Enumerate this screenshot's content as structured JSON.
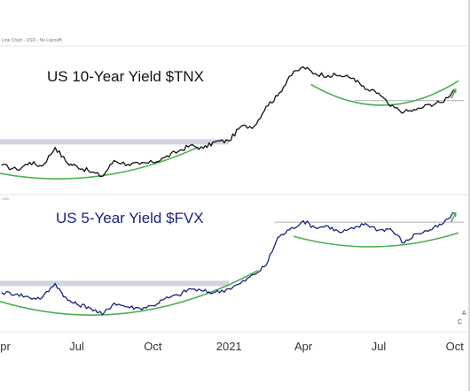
{
  "header": {
    "caption": "Line Chart - USD - No Layout"
  },
  "chart_data": [
    {
      "type": "line",
      "title": "US 10-Year Yield $TNX",
      "series_color": "#111111",
      "support_band_color": "#c9ccd8",
      "arc_color": "#4caf50",
      "resistance_color": "#b0b0b0",
      "x_tick_labels": [
        "Apr",
        "Jul",
        "Oct",
        "2021",
        "Apr",
        "Jul",
        "Oct"
      ],
      "x": [
        "2020-04-01",
        "2020-04-20",
        "2020-05-05",
        "2020-05-20",
        "2020-06-05",
        "2020-06-20",
        "2020-07-01",
        "2020-07-15",
        "2020-08-01",
        "2020-08-15",
        "2020-09-01",
        "2020-09-15",
        "2020-10-01",
        "2020-10-15",
        "2020-11-01",
        "2020-11-15",
        "2020-12-01",
        "2020-12-15",
        "2021-01-01",
        "2021-01-15",
        "2021-02-01",
        "2021-02-15",
        "2021-03-01",
        "2021-03-15",
        "2021-04-01",
        "2021-04-15",
        "2021-05-01",
        "2021-05-15",
        "2021-06-01",
        "2021-06-15",
        "2021-07-01",
        "2021-07-15",
        "2021-08-01",
        "2021-08-15",
        "2021-09-01",
        "2021-09-15",
        "2021-10-01"
      ],
      "values": [
        0.67,
        0.62,
        0.7,
        0.66,
        0.86,
        0.69,
        0.66,
        0.61,
        0.55,
        0.72,
        0.68,
        0.68,
        0.7,
        0.75,
        0.82,
        0.88,
        0.85,
        0.92,
        0.93,
        1.08,
        1.09,
        1.3,
        1.41,
        1.62,
        1.72,
        1.65,
        1.63,
        1.63,
        1.6,
        1.48,
        1.44,
        1.3,
        1.24,
        1.26,
        1.32,
        1.34,
        1.48
      ],
      "support_level": 0.92,
      "resistance_level": 1.36,
      "ylim": [
        0.45,
        1.85
      ],
      "xlabel": "",
      "ylabel": ""
    },
    {
      "type": "line",
      "title": "US 5-Year Yield $FVX",
      "series_color": "#1a237e",
      "support_band_color": "#c9ccd8",
      "arc_color": "#4caf50",
      "resistance_color": "#b0b0b0",
      "x_tick_labels": [
        "Apr",
        "Jul",
        "Oct",
        "2021",
        "Apr",
        "Jul",
        "Oct"
      ],
      "x": [
        "2020-04-01",
        "2020-04-20",
        "2020-05-05",
        "2020-05-20",
        "2020-06-05",
        "2020-06-20",
        "2020-07-01",
        "2020-07-15",
        "2020-08-01",
        "2020-08-15",
        "2020-09-01",
        "2020-09-15",
        "2020-10-01",
        "2020-10-15",
        "2020-11-01",
        "2020-11-15",
        "2020-12-01",
        "2020-12-15",
        "2021-01-01",
        "2021-01-15",
        "2021-02-01",
        "2021-02-15",
        "2021-03-01",
        "2021-03-15",
        "2021-04-01",
        "2021-04-15",
        "2021-05-01",
        "2021-05-15",
        "2021-06-01",
        "2021-06-15",
        "2021-07-01",
        "2021-07-15",
        "2021-08-01",
        "2021-08-15",
        "2021-09-01",
        "2021-09-15",
        "2021-10-01"
      ],
      "values": [
        0.38,
        0.37,
        0.34,
        0.34,
        0.45,
        0.32,
        0.29,
        0.27,
        0.21,
        0.3,
        0.27,
        0.26,
        0.28,
        0.33,
        0.36,
        0.41,
        0.39,
        0.38,
        0.41,
        0.45,
        0.52,
        0.59,
        0.8,
        0.86,
        0.93,
        0.88,
        0.89,
        0.84,
        0.87,
        0.91,
        0.86,
        0.87,
        0.76,
        0.83,
        0.86,
        0.9,
        0.99
      ],
      "support_level": 0.45,
      "resistance_level": 0.92,
      "ylim": [
        0.1,
        1.05
      ],
      "xlabel": "",
      "ylabel": ""
    }
  ]
}
